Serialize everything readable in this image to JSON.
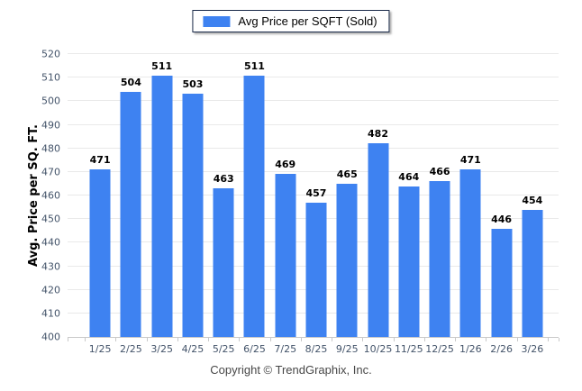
{
  "legend": {
    "label": "Avg Price per SQFT (Sold)",
    "swatch_color": "#3e82f1"
  },
  "chart_data": {
    "type": "bar",
    "title": "",
    "categories": [
      "1/25",
      "2/25",
      "3/25",
      "4/25",
      "5/25",
      "6/25",
      "7/25",
      "8/25",
      "9/25",
      "10/25",
      "11/25",
      "12/25",
      "1/26",
      "2/26",
      "3/26"
    ],
    "series": [
      {
        "name": "Avg Price per SQFT (Sold)",
        "values": [
          471,
          504,
          511,
          503,
          463,
          511,
          469,
          457,
          465,
          482,
          464,
          466,
          471,
          446,
          454
        ]
      }
    ],
    "xlabel": "",
    "ylabel": "Avg. Price per SQ. FT.",
    "ylim": [
      400,
      520
    ],
    "ytick_step": 10,
    "bar_color": "#3e82f1",
    "grid": "horizontal",
    "gridline_color": "#e9e9e9",
    "axis_line_color": "#c9c9c9",
    "tick_label_color": "#44546a",
    "value_label_color": "#000000",
    "legend_position": "top-center"
  },
  "footer": {
    "copyright": "Copyright © TrendGraphix, Inc."
  }
}
